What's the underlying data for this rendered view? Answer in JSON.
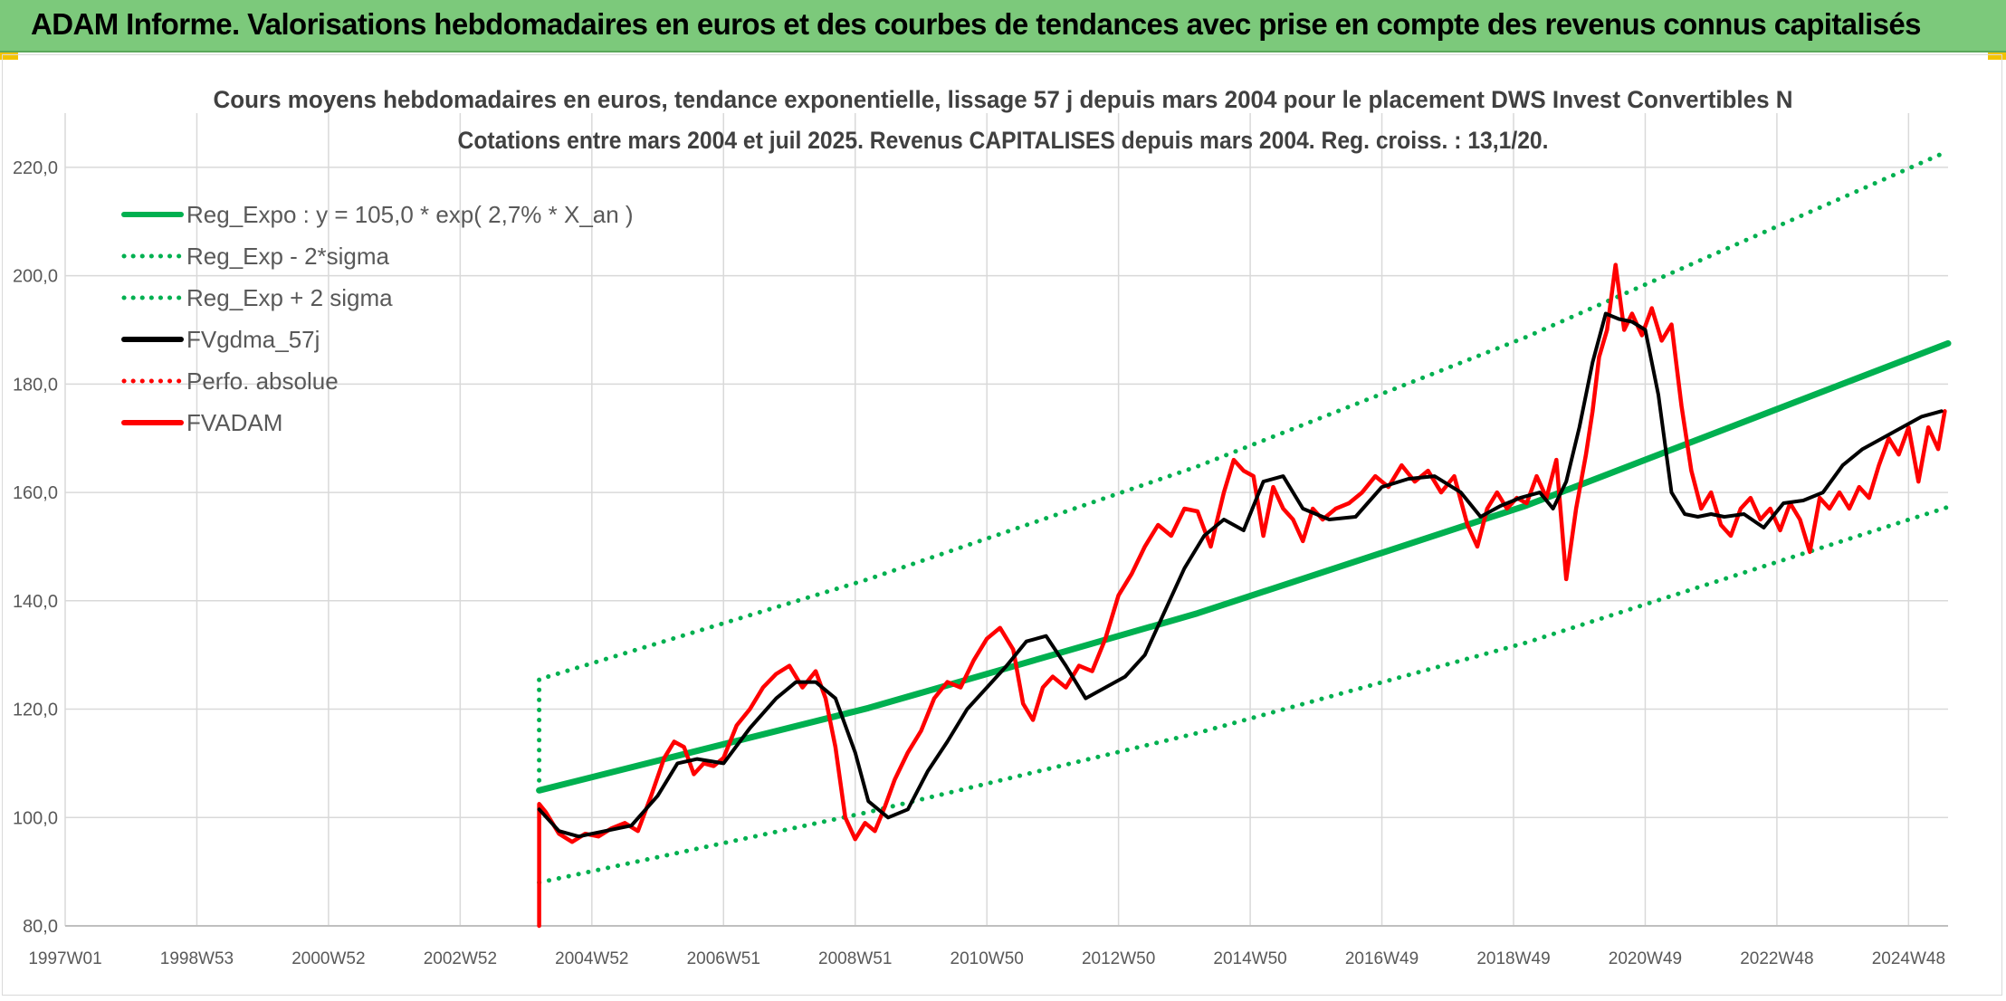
{
  "header": {
    "title": "ADAM Informe. Valorisations hebdomadaires en euros et des courbes de tendances avec prise en compte des revenus connus capitalisés"
  },
  "colors": {
    "header_bg": "#7cc97b",
    "trend": "#00b050",
    "fvadam": "#ff0000",
    "fvgdma": "#000000",
    "grid": "#d9d9d9",
    "text": "#595959",
    "title_text": "#404040"
  },
  "chart_data": {
    "type": "line",
    "title": "Cours moyens hebdomadaires en euros, tendance exponentielle, lissage 57 j depuis mars 2004 pour le placement DWS Invest Convertibles N",
    "subtitle": "Cotations entre mars 2004 et juil 2025. Revenus CAPITALISES depuis mars 2004. Reg. croiss. : 13,1/20.",
    "xlim": [
      1997.0,
      2025.6
    ],
    "ylim": [
      80,
      230
    ],
    "y_ticks": [
      80,
      100,
      120,
      140,
      160,
      180,
      200,
      220
    ],
    "y_tick_labels": [
      "80,0",
      "100,0",
      "120,0",
      "140,0",
      "160,0",
      "180,0",
      "200,0",
      "220,0"
    ],
    "x_ticks": [
      1997.0,
      1999.0,
      2001.0,
      2003.0,
      2005.0,
      2007.0,
      2009.0,
      2011.0,
      2013.0,
      2015.0,
      2017.0,
      2019.0,
      2021.0,
      2023.0,
      2025.0
    ],
    "x_tick_labels": [
      "1997W01",
      "1998W53",
      "2000W52",
      "2002W52",
      "2004W52",
      "2006W51",
      "2008W51",
      "2010W50",
      "2012W50",
      "2014W50",
      "2016W49",
      "2018W49",
      "2020W49",
      "2022W48",
      "2024W48"
    ],
    "legend_position": "top-left",
    "legend": [
      {
        "label": "Reg_Expo : y = 105,0 * exp( 2,7% *  X_an )",
        "color": "#00b050",
        "style": "solid"
      },
      {
        "label": "Reg_Exp - 2*sigma",
        "color": "#00b050",
        "style": "dotted"
      },
      {
        "label": "Reg_Exp + 2 sigma",
        "color": "#00b050",
        "style": "dotted"
      },
      {
        "label": "FVgdma_57j",
        "color": "#000000",
        "style": "solid"
      },
      {
        "label": "Perfo. absolue",
        "color": "#ff0000",
        "style": "dotted"
      },
      {
        "label": "FVADAM",
        "color": "#ff0000",
        "style": "solid"
      }
    ],
    "series": [
      {
        "name": "Reg_Expo : y = 105,0 * exp( 2,7% *  X_an )",
        "style": "solid",
        "color": "#00b050",
        "x": [
          2004.2,
          2009.2,
          2014.2,
          2019.2,
          2025.6
        ],
        "y": [
          105.0,
          120.2,
          137.7,
          157.6,
          187.5
        ]
      },
      {
        "name": "Reg_Exp - 2*sigma",
        "style": "dotted",
        "color": "#00b050",
        "x": [
          2004.2,
          2009.2,
          2014.2,
          2019.2,
          2025.6
        ],
        "y": [
          88.0,
          101.0,
          115.6,
          132.3,
          157.3
        ]
      },
      {
        "name": "Reg_Exp + 2 sigma",
        "style": "dotted",
        "color": "#00b050",
        "x": [
          2004.2,
          2004.2,
          2009.2,
          2014.2,
          2019.2,
          2025.6
        ],
        "y": [
          105.0,
          125.5,
          144.0,
          164.8,
          188.7,
          223.0
        ]
      },
      {
        "name": "FVgdma_57j",
        "style": "solid",
        "color": "#000000",
        "x": [
          2004.2,
          2004.5,
          2004.8,
          2005.2,
          2005.6,
          2006.0,
          2006.3,
          2006.6,
          2007.0,
          2007.4,
          2007.8,
          2008.1,
          2008.4,
          2008.7,
          2009.0,
          2009.2,
          2009.5,
          2009.8,
          2010.1,
          2010.4,
          2010.7,
          2011.0,
          2011.3,
          2011.6,
          2011.9,
          2012.2,
          2012.5,
          2012.8,
          2013.1,
          2013.4,
          2013.7,
          2014.0,
          2014.3,
          2014.6,
          2014.9,
          2015.2,
          2015.5,
          2015.8,
          2016.2,
          2016.6,
          2017.0,
          2017.4,
          2017.8,
          2018.2,
          2018.5,
          2018.8,
          2019.1,
          2019.4,
          2019.6,
          2019.8,
          2020.0,
          2020.2,
          2020.4,
          2020.6,
          2020.8,
          2021.0,
          2021.2,
          2021.4,
          2021.6,
          2021.8,
          2022.0,
          2022.2,
          2022.5,
          2022.8,
          2023.1,
          2023.4,
          2023.7,
          2024.0,
          2024.3,
          2024.6,
          2024.9,
          2025.2,
          2025.5
        ],
        "y": [
          101.5,
          97.5,
          96.5,
          97.5,
          98.5,
          104.0,
          110.0,
          110.8,
          110.0,
          116.5,
          122.0,
          125.0,
          125.0,
          122.0,
          112.0,
          103.0,
          100.0,
          101.5,
          108.5,
          114.0,
          120.0,
          124.0,
          128.0,
          132.5,
          133.5,
          128.0,
          122.0,
          124.0,
          126.0,
          130.0,
          138.0,
          146.0,
          152.0,
          155.0,
          153.0,
          162.0,
          163.0,
          157.0,
          155.0,
          155.5,
          161.0,
          162.5,
          163.0,
          160.0,
          155.5,
          157.5,
          159.0,
          160.0,
          157.0,
          162.0,
          172.0,
          184.0,
          193.0,
          192.0,
          191.5,
          190.0,
          178.0,
          160.0,
          156.0,
          155.5,
          156.0,
          155.5,
          156.0,
          153.5,
          158.0,
          158.5,
          160.0,
          165.0,
          168.0,
          170.0,
          172.0,
          174.0,
          175.0
        ]
      },
      {
        "name": "Perfo. absolue",
        "style": "dotted",
        "color": "#ff0000",
        "x": [
          2004.2,
          2004.2
        ],
        "y": [
          80.0,
          102.0
        ]
      },
      {
        "name": "FVADAM",
        "style": "solid",
        "color": "#ff0000",
        "x": [
          2004.2,
          2004.2,
          2004.3,
          2004.5,
          2004.7,
          2004.9,
          2005.1,
          2005.3,
          2005.5,
          2005.7,
          2005.9,
          2006.1,
          2006.25,
          2006.4,
          2006.55,
          2006.7,
          2006.85,
          2007.0,
          2007.2,
          2007.4,
          2007.6,
          2007.8,
          2008.0,
          2008.2,
          2008.4,
          2008.55,
          2008.7,
          2008.85,
          2009.0,
          2009.15,
          2009.3,
          2009.45,
          2009.6,
          2009.8,
          2010.0,
          2010.2,
          2010.4,
          2010.6,
          2010.8,
          2011.0,
          2011.2,
          2011.4,
          2011.55,
          2011.7,
          2011.85,
          2012.0,
          2012.2,
          2012.4,
          2012.6,
          2012.8,
          2013.0,
          2013.2,
          2013.4,
          2013.6,
          2013.8,
          2014.0,
          2014.2,
          2014.4,
          2014.6,
          2014.75,
          2014.9,
          2015.05,
          2015.2,
          2015.35,
          2015.5,
          2015.65,
          2015.8,
          2015.95,
          2016.1,
          2016.3,
          2016.5,
          2016.7,
          2016.9,
          2017.1,
          2017.3,
          2017.5,
          2017.7,
          2017.9,
          2018.1,
          2018.3,
          2018.45,
          2018.6,
          2018.75,
          2018.9,
          2019.05,
          2019.2,
          2019.35,
          2019.5,
          2019.65,
          2019.8,
          2019.95,
          2020.1,
          2020.2,
          2020.3,
          2020.42,
          2020.55,
          2020.68,
          2020.8,
          2020.95,
          2021.1,
          2021.25,
          2021.4,
          2021.55,
          2021.7,
          2021.85,
          2022.0,
          2022.15,
          2022.3,
          2022.45,
          2022.6,
          2022.75,
          2022.9,
          2023.05,
          2023.2,
          2023.35,
          2023.5,
          2023.65,
          2023.8,
          2023.95,
          2024.1,
          2024.25,
          2024.4,
          2024.55,
          2024.7,
          2024.85,
          2025.0,
          2025.15,
          2025.3,
          2025.45,
          2025.55
        ],
        "y": [
          80.0,
          102.5,
          101.0,
          97.0,
          95.5,
          97.0,
          96.5,
          98.0,
          99.0,
          97.5,
          104.0,
          111.0,
          114.0,
          113.0,
          108.0,
          110.0,
          109.5,
          111.0,
          117.0,
          120.0,
          124.0,
          126.5,
          128.0,
          124.0,
          127.0,
          122.0,
          113.0,
          100.0,
          96.0,
          99.0,
          97.5,
          102.0,
          107.0,
          112.0,
          116.0,
          122.0,
          125.0,
          124.0,
          129.0,
          133.0,
          135.0,
          131.0,
          121.0,
          118.0,
          124.0,
          126.0,
          124.0,
          128.0,
          127.0,
          133.0,
          141.0,
          145.0,
          150.0,
          154.0,
          152.0,
          157.0,
          156.5,
          150.0,
          160.0,
          166.0,
          164.0,
          163.0,
          152.0,
          161.0,
          157.0,
          155.0,
          151.0,
          157.0,
          155.0,
          157.0,
          158.0,
          160.0,
          163.0,
          161.0,
          165.0,
          162.0,
          164.0,
          160.0,
          163.0,
          154.0,
          150.0,
          157.0,
          160.0,
          157.0,
          159.0,
          158.0,
          163.0,
          159.0,
          166.0,
          144.0,
          157.0,
          167.0,
          175.0,
          185.0,
          190.0,
          202.0,
          190.0,
          193.0,
          189.0,
          194.0,
          188.0,
          191.0,
          176.0,
          164.0,
          157.0,
          160.0,
          154.0,
          152.0,
          157.0,
          159.0,
          155.0,
          157.0,
          153.0,
          158.0,
          155.0,
          149.0,
          159.0,
          157.0,
          160.0,
          157.0,
          161.0,
          159.0,
          165.0,
          170.0,
          167.0,
          172.0,
          162.0,
          172.0,
          168.0,
          175.0
        ]
      }
    ]
  }
}
